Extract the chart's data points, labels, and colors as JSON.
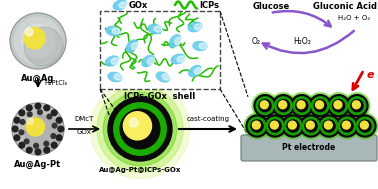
{
  "bg_color": "#ffffff",
  "fig_width": 3.78,
  "fig_height": 1.89,
  "dpi": 100,
  "labels": {
    "au_ag": "Au@Ag",
    "au_ag_pt": "Au@Ag-Pt",
    "au_ag_pt_icps": "Au@Ag-Pt@ICPs-GOx",
    "icps_gox_shell": "ICPs-GOx  shell",
    "gox": "GOx",
    "icps": "ICPs",
    "glucose": "Glucose",
    "gluconic_acid": "Gluconic Acid",
    "h2o_o2": "H₂O + O₂",
    "o2": "O₂",
    "h2o2": "H₂O₂",
    "e": "e",
    "reagent1": "H₂PtCl₆",
    "reagent2": "DMcT",
    "reagent3": "GOx",
    "cast_coating": "cast-coating",
    "pt_electrode": "Pt electrode"
  },
  "colors": {
    "au_core": "#f0e040",
    "icp_green": "#22bb00",
    "gox_cyan": "#66ccee",
    "arrow_purple": "#8855cc",
    "red_arrow": "#dd0000",
    "text_black": "#000000",
    "dashed_box": "#444444"
  }
}
